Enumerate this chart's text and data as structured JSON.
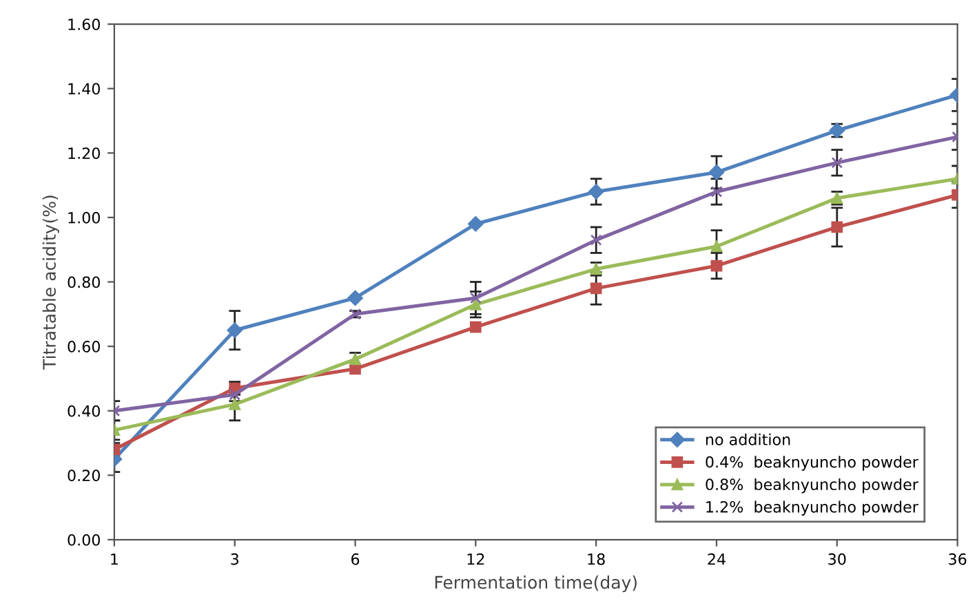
{
  "chart_data": {
    "type": "line",
    "xlabel": "Fermentation time(day)",
    "ylabel": "Titratable acidity(%)",
    "categories": [
      "1",
      "3",
      "6",
      "12",
      "18",
      "24",
      "30",
      "36"
    ],
    "ylim": [
      0,
      1.6
    ],
    "yticks": [
      {
        "value": 0,
        "label": "0.00"
      },
      {
        "value": 0.2,
        "label": "0.20"
      },
      {
        "value": 0.4,
        "label": "0.40"
      },
      {
        "value": 0.6,
        "label": "0.60"
      },
      {
        "value": 0.8,
        "label": "0.80"
      },
      {
        "value": 1.0,
        "label": "1.00"
      },
      {
        "value": 1.2,
        "label": "1.20"
      },
      {
        "value": 1.4,
        "label": "1.40"
      },
      {
        "value": 1.6,
        "label": "1.60"
      }
    ],
    "grid": false,
    "legend": "bottom right",
    "series": [
      {
        "name": "no addition",
        "color": "#4f81bd",
        "marker": "diamond",
        "values": [
          0.25,
          0.65,
          0.75,
          0.98,
          1.08,
          1.14,
          1.27,
          1.38
        ],
        "errors": [
          0.04,
          0.06,
          null,
          null,
          0.04,
          0.05,
          0.02,
          0.05
        ]
      },
      {
        "name": "0.4%  beaknyuncho powder",
        "color": "#c0504d",
        "marker": "square",
        "values": [
          0.28,
          0.47,
          0.53,
          0.66,
          0.78,
          0.85,
          0.97,
          1.07
        ],
        "errors": [
          0.02,
          0.02,
          null,
          null,
          0.05,
          0.04,
          0.06,
          0.04
        ]
      },
      {
        "name": "0.8%  beaknyuncho powder",
        "color": "#9bbb59",
        "marker": "triangle",
        "values": [
          0.34,
          0.42,
          0.56,
          0.73,
          0.84,
          0.91,
          1.06,
          1.12
        ],
        "errors": [
          0.03,
          0.05,
          0.02,
          0.04,
          0.02,
          0.05,
          0.02,
          0.04
        ]
      },
      {
        "name": "1.2%  beaknyuncho powder",
        "color": "#8064a2",
        "marker": "cross",
        "values": [
          0.4,
          0.45,
          0.7,
          0.75,
          0.93,
          1.08,
          1.17,
          1.25
        ],
        "errors": [
          0.03,
          0.02,
          0.01,
          0.05,
          0.04,
          0.04,
          0.04,
          0.04
        ]
      }
    ]
  }
}
